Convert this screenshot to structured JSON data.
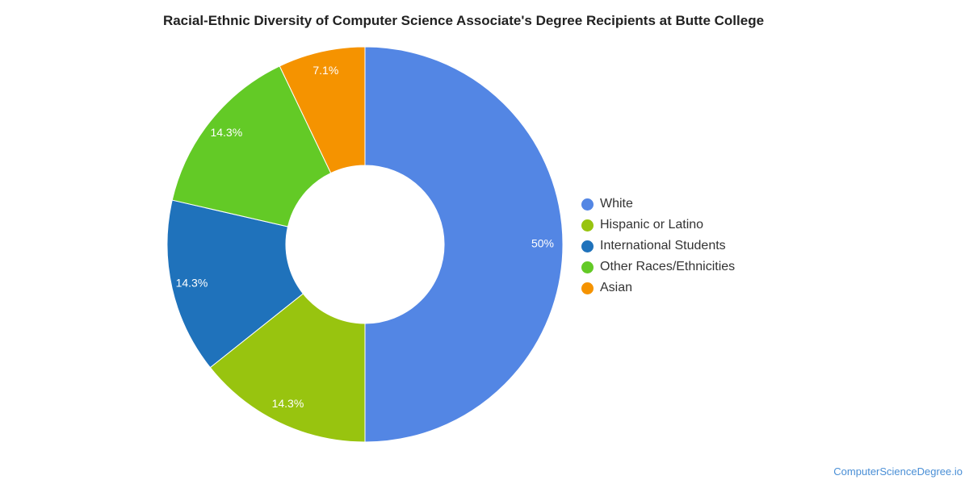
{
  "chart_data": {
    "type": "pie",
    "title": "Racial-Ethnic Diversity of Computer Science Associate's Degree Recipients at Butte College",
    "donut": true,
    "legend_position": "right",
    "slices": [
      {
        "name": "White",
        "value": 50,
        "label": "50%",
        "color": "#5386e4"
      },
      {
        "name": "Hispanic or Latino",
        "value": 14.3,
        "label": "14.3%",
        "color": "#98c40f"
      },
      {
        "name": "International Students",
        "value": 14.3,
        "label": "14.3%",
        "color": "#1f72bb"
      },
      {
        "name": "Other Races/Ethnicities",
        "value": 14.3,
        "label": "14.3%",
        "color": "#63ca26"
      },
      {
        "name": "Asian",
        "value": 7.1,
        "label": "7.1%",
        "color": "#f59300"
      }
    ]
  },
  "credit": "ComputerScienceDegree.io"
}
